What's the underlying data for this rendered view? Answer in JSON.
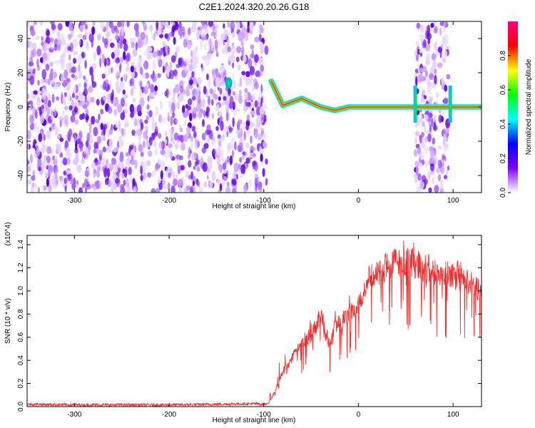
{
  "chart_data": [
    {
      "type": "heatmap",
      "title": "C2E1.2024.320.20.26.G18",
      "xlabel": "Height of straight line (km)",
      "ylabel": "Frequency (Hz)",
      "xlim": [
        -350,
        130
      ],
      "ylim": [
        -50,
        50
      ],
      "x_ticks": [
        -300,
        -200,
        -100,
        0,
        100
      ],
      "y_ticks": [
        -40,
        -20,
        0,
        20,
        40
      ],
      "colorbar": {
        "label": "Normalized spectral amplitude",
        "range": [
          0,
          1
        ],
        "ticks": [
          0.0,
          0.2,
          0.4,
          0.6,
          0.8
        ],
        "colors": [
          "#ffffff",
          "#8000ff",
          "#0000ff",
          "#00ffff",
          "#00ff00",
          "#ffff00",
          "#ff0000",
          "#ff0080"
        ]
      },
      "noise_regions": [
        {
          "x_range": [
            -350,
            -97
          ],
          "y_range": [
            -50,
            50
          ]
        },
        {
          "x_range": [
            60,
            95
          ],
          "y_range": [
            -50,
            50
          ]
        }
      ],
      "signal_track": [
        {
          "x": -137,
          "y": 14
        },
        {
          "x": -92,
          "y": 15
        },
        {
          "x": -80,
          "y": 1
        },
        {
          "x": -60,
          "y": 5
        },
        {
          "x": -40,
          "y": 0
        },
        {
          "x": -25,
          "y": -2
        },
        {
          "x": -10,
          "y": 0
        },
        {
          "x": 0,
          "y": 0
        },
        {
          "x": 55,
          "y": 0
        },
        {
          "x": 97,
          "y": 0
        },
        {
          "x": 130,
          "y": 0
        }
      ]
    },
    {
      "type": "line",
      "xlabel": "Height of straight line (km)",
      "ylabel": "SNR (10 * v/v)",
      "y_multiplier": "(x10^4)",
      "xlim": [
        -350,
        130
      ],
      "ylim": [
        0,
        1.48
      ],
      "x_ticks": [
        -300,
        -200,
        -100,
        0,
        100
      ],
      "y_ticks": [
        0.0,
        0.2,
        0.4,
        0.6,
        0.8,
        1.0,
        1.2,
        1.4
      ],
      "color": "#ee3030",
      "series": [
        {
          "x": [
            -350,
            -300,
            -250,
            -200,
            -150,
            -110,
            -100,
            -95,
            -90,
            -80,
            -70,
            -60,
            -50,
            -45,
            -40,
            -35,
            -30,
            -25,
            -20,
            -15,
            -10,
            -5,
            0,
            5,
            10,
            20,
            30,
            40,
            50,
            60,
            70,
            80,
            90,
            100,
            110,
            120,
            130
          ],
          "values": [
            0.02,
            0.015,
            0.015,
            0.015,
            0.02,
            0.025,
            0.02,
            0.03,
            0.1,
            0.3,
            0.42,
            0.55,
            0.6,
            0.7,
            0.82,
            0.65,
            0.55,
            0.7,
            0.68,
            0.8,
            0.8,
            0.85,
            0.9,
            1.0,
            1.1,
            1.15,
            1.22,
            1.25,
            1.26,
            1.24,
            1.2,
            1.18,
            1.15,
            1.12,
            1.1,
            1.06,
            1.0
          ]
        }
      ]
    }
  ]
}
